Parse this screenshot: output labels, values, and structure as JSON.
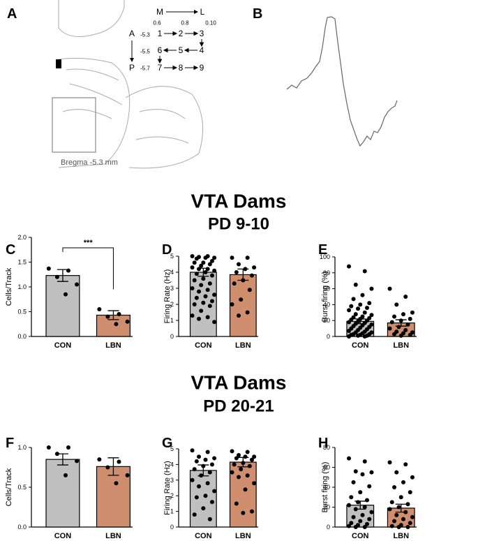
{
  "panels": [
    "A",
    "B"
  ],
  "diagram": {
    "medial": "M",
    "lateral": "L",
    "ml_coords": [
      "0.6",
      "0.8",
      "0.10"
    ],
    "anterior": "A",
    "posterior": "P",
    "ap_coords": [
      "-5.3",
      "-5.5",
      "-5.7"
    ],
    "sites": [
      "1",
      "2",
      "3",
      "6",
      "5",
      "4",
      "7",
      "8",
      "9"
    ],
    "caption": "Bregma -5.3 mm"
  },
  "headings": [
    {
      "title": "VTA  Dams",
      "subtitle": "PD 9-10"
    },
    {
      "title": "VTA  Dams",
      "subtitle": "PD 20-21"
    }
  ],
  "chart_data": [
    {
      "type": "bar",
      "panel": "C",
      "ylabel": "Cells/Track",
      "categories": [
        "CON",
        "LBN"
      ],
      "colors": [
        "#c0c0c0",
        "#cf8f6e"
      ],
      "values": [
        1.23,
        0.43
      ],
      "errors": [
        0.12,
        0.09
      ],
      "points": [
        [
          1.37,
          1.33,
          1.2,
          1.05,
          0.85
        ],
        [
          0.55,
          0.45,
          0.4,
          0.3,
          0.25
        ]
      ],
      "annotation": "***",
      "ylim": [
        0,
        2
      ],
      "yticks": [
        {
          "value": 0,
          "label": "0.0"
        },
        {
          "value": 0.5,
          "label": "0.5"
        },
        {
          "value": 1,
          "label": "1.0"
        },
        {
          "value": 1.5,
          "label": "1.5"
        },
        {
          "value": 2,
          "label": "2.0"
        }
      ]
    },
    {
      "type": "bar",
      "panel": "D",
      "ylabel": "Firing Rate (Hz)",
      "categories": [
        "CON",
        "LBN"
      ],
      "colors": [
        "#c0c0c0",
        "#cf8f6e"
      ],
      "values": [
        4.0,
        3.85
      ],
      "errors": [
        0.25,
        0.35
      ],
      "points": [
        [
          5,
          5,
          4.95,
          4.9,
          4.9,
          4.85,
          4.7,
          4.6,
          4.6,
          4.5,
          4.4,
          4.3,
          4.2,
          4.2,
          4.1,
          4.0,
          3.9,
          3.8,
          3.6,
          3.5,
          3.3,
          3.2,
          3.0,
          2.9,
          2.8,
          2.6,
          2.5,
          2.4,
          2.2,
          2.1,
          2.0,
          1.9,
          1.6,
          1.3,
          1.2,
          1.1,
          0.9
        ],
        [
          4.9,
          4.9,
          4.5,
          4.3,
          4.2,
          4.0,
          3.8,
          3.5,
          3.3,
          2.9,
          2.3,
          2.0,
          1.5,
          1.3
        ]
      ],
      "ylim": [
        0,
        5
      ],
      "yticks": [
        0,
        1,
        2,
        3,
        4,
        5
      ]
    },
    {
      "type": "bar",
      "panel": "E",
      "ylabel": "Burst firing (%)",
      "categories": [
        "CON",
        "LBN"
      ],
      "colors": [
        "#c0c0c0",
        "#cf8f6e"
      ],
      "values": [
        19,
        17
      ],
      "errors": [
        3,
        4
      ],
      "points": [
        [
          88,
          82,
          65,
          60,
          52,
          47,
          42,
          40,
          38,
          36,
          35,
          33,
          30,
          28,
          27,
          25,
          24,
          23,
          22,
          21,
          20,
          19,
          18,
          17,
          16,
          15,
          14,
          13,
          12,
          11,
          10,
          9,
          8,
          7,
          6,
          5,
          5,
          4,
          3,
          3,
          2,
          2,
          1,
          1,
          0,
          0
        ],
        [
          60,
          50,
          40,
          30,
          28,
          25,
          22,
          20,
          18,
          15,
          12,
          10,
          8,
          6,
          5,
          4,
          3,
          2,
          1
        ]
      ],
      "ylim": [
        0,
        100
      ],
      "yticks": [
        0,
        20,
        40,
        60,
        80,
        100
      ]
    },
    {
      "type": "bar",
      "panel": "F",
      "ylabel": "Cells/Track",
      "categories": [
        "CON",
        "LBN"
      ],
      "colors": [
        "#c0c0c0",
        "#cf8f6e"
      ],
      "values": [
        0.85,
        0.76
      ],
      "errors": [
        0.07,
        0.11
      ],
      "points": [
        [
          1.0,
          1.0,
          0.92,
          0.83,
          0.65
        ],
        [
          0.85,
          0.82,
          0.75,
          0.65,
          0.55
        ]
      ],
      "ylim": [
        0,
        1
      ],
      "yticks": [
        {
          "value": 0,
          "label": "0.0"
        },
        {
          "value": 0.5,
          "label": "0.5"
        },
        {
          "value": 1,
          "label": "1.0"
        }
      ]
    },
    {
      "type": "bar",
      "panel": "G",
      "ylabel": "Firing Rate (Hz)",
      "categories": [
        "CON",
        "LBN"
      ],
      "colors": [
        "#c0c0c0",
        "#cf8f6e"
      ],
      "values": [
        3.62,
        4.15
      ],
      "errors": [
        0.35,
        0.3
      ],
      "points": [
        [
          4.9,
          4.8,
          4.5,
          4.4,
          4.3,
          4.2,
          4.0,
          3.9,
          3.7,
          3.5,
          3.3,
          3.0,
          2.8,
          2.6,
          2.3,
          2.0,
          1.9,
          1.6,
          1.2,
          0.8,
          0.5
        ],
        [
          4.85,
          4.8,
          4.6,
          4.5,
          4.5,
          4.4,
          4.3,
          4.1,
          4.0,
          3.9,
          3.7,
          3.5,
          3.3,
          3.2,
          2.8,
          2.4,
          1.5,
          1.0,
          0.9
        ]
      ],
      "ylim": [
        0,
        5
      ],
      "yticks": [
        0,
        1,
        2,
        3,
        4,
        5
      ]
    },
    {
      "type": "bar",
      "panel": "H",
      "ylabel": "Burst firing (%)",
      "categories": [
        "CON",
        "LBN"
      ],
      "colors": [
        "#c0c0c0",
        "#cf8f6e"
      ],
      "values": [
        22,
        19
      ],
      "errors": [
        4,
        4
      ],
      "points": [
        [
          69,
          66,
          56,
          55,
          53,
          45,
          41,
          35,
          30,
          27,
          25,
          22,
          20,
          18,
          15,
          12,
          10,
          8,
          6,
          4,
          3,
          2,
          1,
          0,
          0
        ],
        [
          65,
          63,
          55,
          50,
          45,
          40,
          35,
          30,
          25,
          23,
          20,
          18,
          15,
          12,
          10,
          8,
          6,
          4,
          2,
          1,
          0,
          0
        ]
      ],
      "ylim": [
        0,
        80
      ],
      "yticks": [
        0,
        20,
        40,
        60,
        80
      ]
    }
  ]
}
